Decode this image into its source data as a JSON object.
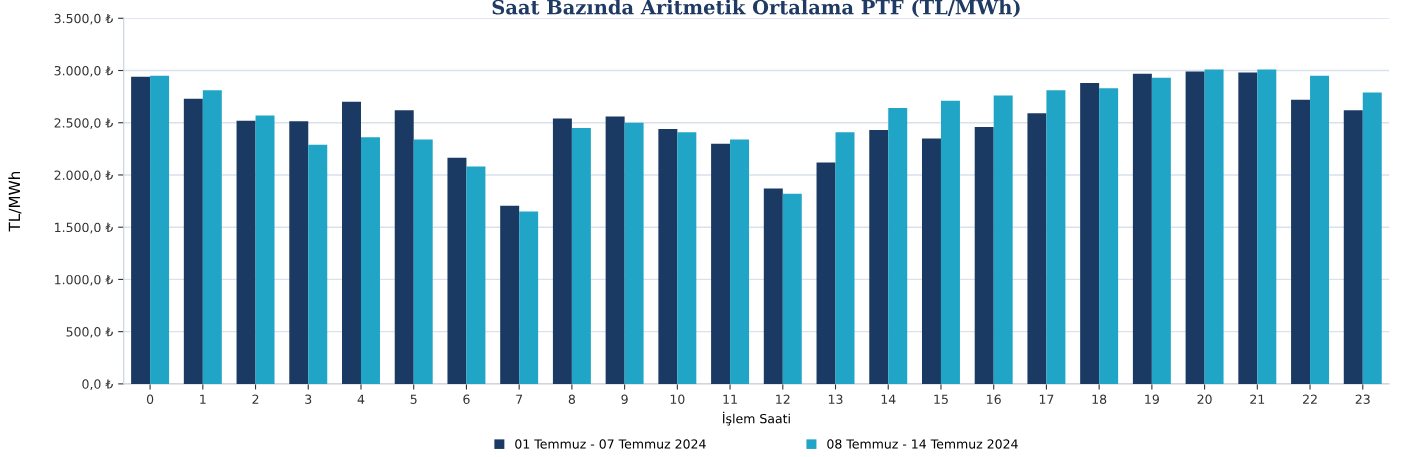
{
  "chart_data": {
    "type": "bar",
    "title": "Saat Bazında Aritmetik Ortalama PTF (TL/MWh)",
    "xlabel": "İşlem Saati",
    "ylabel": "TL/MWh",
    "categories": [
      "0",
      "1",
      "2",
      "3",
      "4",
      "5",
      "6",
      "7",
      "8",
      "9",
      "10",
      "11",
      "12",
      "13",
      "14",
      "15",
      "16",
      "17",
      "18",
      "19",
      "20",
      "21",
      "22",
      "23"
    ],
    "series": [
      {
        "name": "01 Temmuz - 07 Temmuz 2024",
        "color": "#1b3a63",
        "values": [
          2940,
          2730,
          2520,
          2515,
          2700,
          2620,
          2165,
          1705,
          2540,
          2560,
          2440,
          2300,
          1870,
          2120,
          2430,
          2350,
          2460,
          2590,
          2880,
          2970,
          2990,
          2980,
          2720,
          2620
        ]
      },
      {
        "name": "08 Temmuz - 14 Temmuz 2024",
        "color": "#21a5c6",
        "values": [
          2950,
          2810,
          2570,
          2290,
          2360,
          2340,
          2080,
          1650,
          2450,
          2500,
          2410,
          2340,
          1820,
          2410,
          2640,
          2710,
          2760,
          2810,
          2830,
          2930,
          3010,
          3010,
          2950,
          2790
        ]
      }
    ],
    "ylim": [
      0,
      3500
    ],
    "yticks": [
      {
        "value": 0,
        "label": "0,0 ₺"
      },
      {
        "value": 500,
        "label": "500,0 ₺"
      },
      {
        "value": 1000,
        "label": "1.000,0 ₺"
      },
      {
        "value": 1500,
        "label": "1.500,0 ₺"
      },
      {
        "value": 2000,
        "label": "2.000,0 ₺"
      },
      {
        "value": 2500,
        "label": "2.500,0 ₺"
      },
      {
        "value": 3000,
        "label": "3.000,0 ₺"
      },
      {
        "value": 3500,
        "label": "3.500,0 ₺"
      }
    ],
    "grid": "y",
    "legend": "bottom"
  }
}
